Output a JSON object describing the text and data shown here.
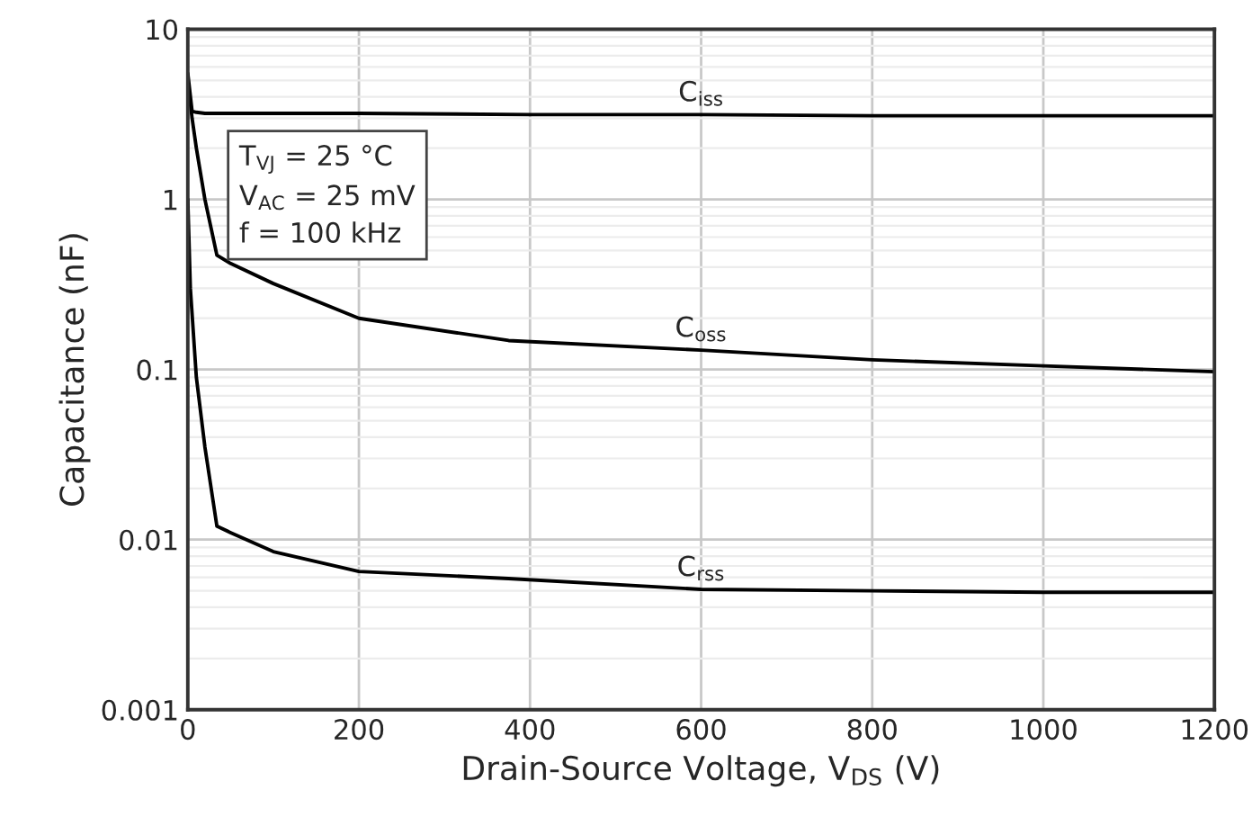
{
  "chart_data": {
    "type": "line",
    "xlabel": "Drain-Source Voltage, V$_{DS}$ (V)",
    "ylabel": "Capacitance (nF)",
    "log": "y",
    "grid": true,
    "marker": "none",
    "line_style": "solid",
    "xlim": [
      0,
      1200
    ],
    "xticks": [
      0,
      200,
      400,
      600,
      800,
      1000,
      1200
    ],
    "ylim": [
      0.001,
      10
    ],
    "yticks": [
      0.001,
      0.01,
      0.1,
      1,
      10
    ],
    "series": [
      {
        "name": "C$_{iss}$",
        "color": "#000000",
        "x": [
          0,
          5,
          10,
          20,
          50,
          100,
          200,
          400,
          600,
          800,
          1000,
          1200
        ],
        "values": [
          5.5,
          3.3,
          3.25,
          3.2,
          3.2,
          3.2,
          3.2,
          3.15,
          3.15,
          3.1,
          3.1,
          3.1
        ]
      },
      {
        "name": "C$_{oss}$",
        "color": "#000000",
        "x": [
          0,
          5,
          10,
          20,
          34,
          50,
          100,
          200,
          375,
          600,
          800,
          1000,
          1200
        ],
        "values": [
          5,
          3,
          2,
          1,
          0.47,
          0.42,
          0.32,
          0.2,
          0.148,
          0.13,
          0.114,
          0.105,
          0.097
        ]
      },
      {
        "name": "C$_{rss}$",
        "color": "#000000",
        "x": [
          0,
          3,
          10,
          20,
          34,
          50,
          100,
          200,
          375,
          600,
          800,
          1000,
          1200
        ],
        "values": [
          1,
          0.3,
          0.09,
          0.035,
          0.012,
          0.011,
          0.0085,
          0.0065,
          0.0059,
          0.0051,
          0.005,
          0.0049,
          0.0049
        ]
      }
    ],
    "annotations": [
      "T$_{VJ}$ = 25 °C\nV$_{AC}$ = 25 mV\nf = 100 kHz"
    ]
  }
}
